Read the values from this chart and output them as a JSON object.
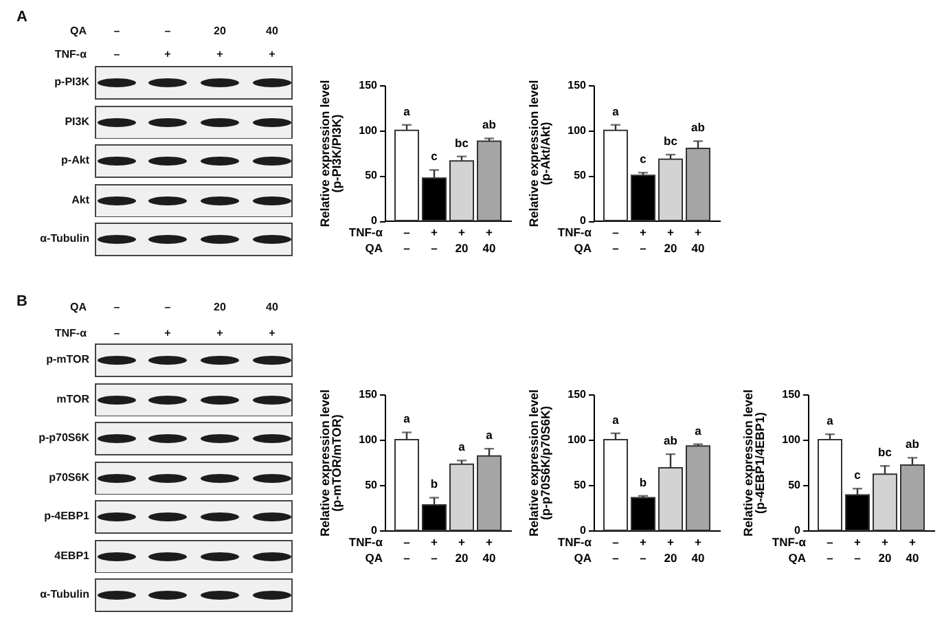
{
  "chart_data": [
    {
      "type": "other",
      "title": "A",
      "xlabel": "QA\nTNF-α",
      "categories": [
        "–\n–",
        "–\n+",
        "20\n+",
        "40\n+"
      ],
      "y_categories": [
        "p-PI3K",
        "PI3K",
        "p-Akt",
        "Akt",
        "α-Tubulin"
      ]
    },
    {
      "type": "bar",
      "ylabel": "Relative expression level\n(p-PI3K/PI3K)",
      "xlabel": "TNF-α\nQA",
      "categories": [
        "–\n–",
        "+\n–",
        "+\n20",
        "+\n40"
      ],
      "values": [
        100,
        47,
        66,
        88
      ],
      "errors": [
        6,
        9,
        5,
        3
      ],
      "colors": [
        "#ffffff",
        "#000000",
        "#d3d3d3",
        "#a5a5a5"
      ],
      "ylim": [
        0,
        150
      ],
      "yticks": [
        0,
        50,
        100,
        150
      ],
      "annotations": [
        {
          "text": "a",
          "x": "–\n–",
          "y": 106
        },
        {
          "text": "c",
          "x": "+\n–",
          "y": 56
        },
        {
          "text": "bc",
          "x": "+\n20",
          "y": 71
        },
        {
          "text": "ab",
          "x": "+\n40",
          "y": 91
        }
      ]
    },
    {
      "type": "bar",
      "ylabel": "Relative expression level\n(p-Akt/Akt)",
      "xlabel": "TNF-α\nQA",
      "categories": [
        "–\n–",
        "+\n–",
        "+\n20",
        "+\n40"
      ],
      "values": [
        100,
        50,
        68,
        80
      ],
      "errors": [
        6,
        3,
        5,
        8
      ],
      "colors": [
        "#ffffff",
        "#000000",
        "#d3d3d3",
        "#a5a5a5"
      ],
      "ylim": [
        0,
        150
      ],
      "yticks": [
        0,
        50,
        100,
        150
      ],
      "annotations": [
        {
          "text": "a",
          "x": "–\n–",
          "y": 106
        },
        {
          "text": "c",
          "x": "+\n–",
          "y": 53
        },
        {
          "text": "bc",
          "x": "+\n20",
          "y": 73
        },
        {
          "text": "ab",
          "x": "+\n40",
          "y": 88
        }
      ]
    },
    {
      "type": "other",
      "title": "B",
      "xlabel": "QA\nTNF-α",
      "categories": [
        "–\n–",
        "–\n+",
        "20\n+",
        "40\n+"
      ],
      "y_categories": [
        "p-mTOR",
        "mTOR",
        "p-p70S6K",
        "p70S6K",
        "p-4EBP1",
        "4EBP1",
        "α-Tubulin"
      ]
    },
    {
      "type": "bar",
      "ylabel": "Relative expression level\n(p-mTOR/mTOR)",
      "xlabel": "TNF-α\nQA",
      "categories": [
        "–\n–",
        "+\n–",
        "+\n20",
        "+\n40"
      ],
      "values": [
        100,
        28,
        73,
        82
      ],
      "errors": [
        8,
        8,
        4,
        8
      ],
      "colors": [
        "#ffffff",
        "#000000",
        "#d3d3d3",
        "#a5a5a5"
      ],
      "ylim": [
        0,
        150
      ],
      "yticks": [
        0,
        50,
        100,
        150
      ],
      "annotations": [
        {
          "text": "a",
          "x": "–\n–",
          "y": 108
        },
        {
          "text": "b",
          "x": "+\n–",
          "y": 36
        },
        {
          "text": "a",
          "x": "+\n20",
          "y": 77
        },
        {
          "text": "a",
          "x": "+\n40",
          "y": 90
        }
      ]
    },
    {
      "type": "bar",
      "ylabel": "Relative expression level\n(p-p70S6K/p70S6K)",
      "xlabel": "TNF-α\nQA",
      "categories": [
        "–\n–",
        "+\n–",
        "+\n20",
        "+\n40"
      ],
      "values": [
        100,
        36,
        69,
        93
      ],
      "errors": [
        7,
        2,
        15,
        2
      ],
      "colors": [
        "#ffffff",
        "#000000",
        "#d3d3d3",
        "#a5a5a5"
      ],
      "ylim": [
        0,
        150
      ],
      "yticks": [
        0,
        50,
        100,
        150
      ],
      "annotations": [
        {
          "text": "a",
          "x": "–\n–",
          "y": 107
        },
        {
          "text": "b",
          "x": "+\n–",
          "y": 38
        },
        {
          "text": "ab",
          "x": "+\n20",
          "y": 84
        },
        {
          "text": "a",
          "x": "+\n40",
          "y": 95
        }
      ]
    },
    {
      "type": "bar",
      "ylabel": "Relative expression level\n(p-4EBP1/4EBP1)",
      "xlabel": "TNF-α\nQA",
      "categories": [
        "–\n–",
        "+\n–",
        "+\n20",
        "+\n40"
      ],
      "values": [
        100,
        39,
        62,
        72
      ],
      "errors": [
        6,
        7,
        9,
        8
      ],
      "colors": [
        "#ffffff",
        "#000000",
        "#d3d3d3",
        "#a5a5a5"
      ],
      "ylim": [
        0,
        150
      ],
      "yticks": [
        0,
        50,
        100,
        150
      ],
      "annotations": [
        {
          "text": "a",
          "x": "–\n–",
          "y": 106
        },
        {
          "text": "c",
          "x": "+\n–",
          "y": 46
        },
        {
          "text": "bc",
          "x": "+\n20",
          "y": 71
        },
        {
          "text": "ab",
          "x": "+\n40",
          "y": 80
        }
      ]
    }
  ]
}
